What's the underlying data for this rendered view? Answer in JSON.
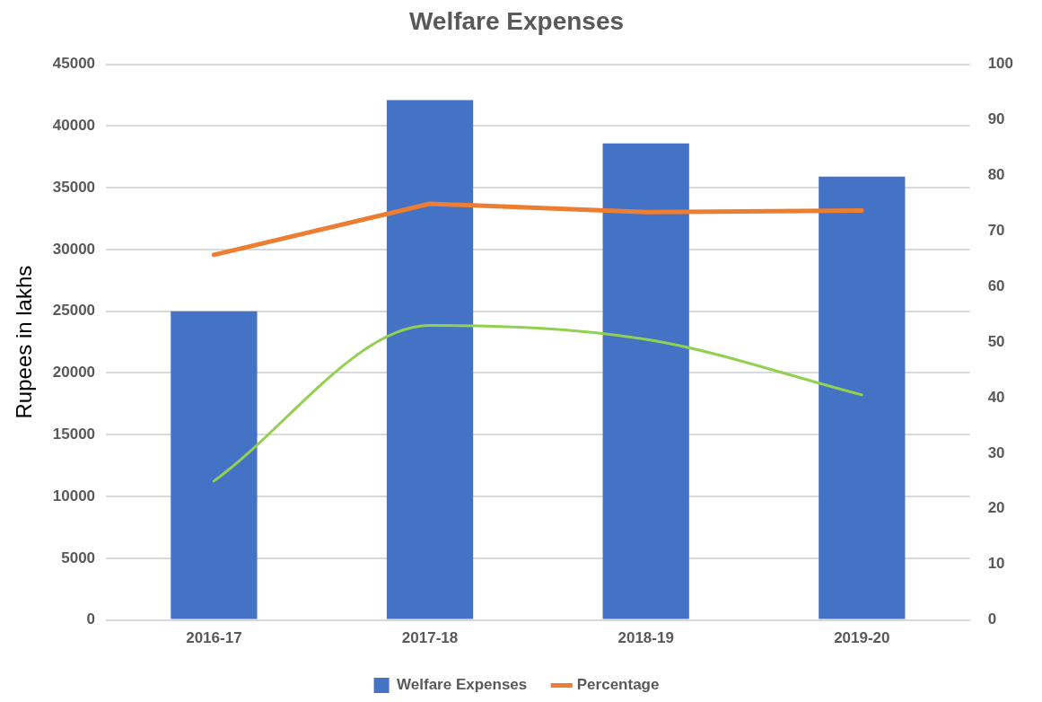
{
  "chart_data": {
    "type": "bar",
    "title": "Welfare Expenses",
    "ylabel": "Rupees in lakhs",
    "categories": [
      "2016-17",
      "2017-18",
      "2018-19",
      "2019-20"
    ],
    "series": [
      {
        "name": "Welfare Expenses",
        "color": "#4472c4",
        "values": [
          25000,
          42100,
          38600,
          35900
        ]
      },
      {
        "name": "Percentage",
        "type": "line",
        "axis": "y2",
        "color": "#ed7d31",
        "values": [
          65.7,
          74.9,
          73.4,
          73.7
        ]
      },
      {
        "type": "line",
        "axis": "y2",
        "color": "#92d050",
        "values": [
          25,
          53,
          50.5,
          40.5
        ]
      }
    ],
    "ylim": [
      0,
      45000
    ],
    "yticks": [
      0,
      5000,
      10000,
      15000,
      20000,
      25000,
      30000,
      35000,
      40000,
      45000
    ],
    "y2lim": [
      0,
      100
    ],
    "y2ticks": [
      0,
      10,
      20,
      30,
      40,
      50,
      60,
      70,
      80,
      90,
      100
    ],
    "grid": "y",
    "legend": "bottom",
    "marker": "none",
    "line_style": "solid"
  }
}
